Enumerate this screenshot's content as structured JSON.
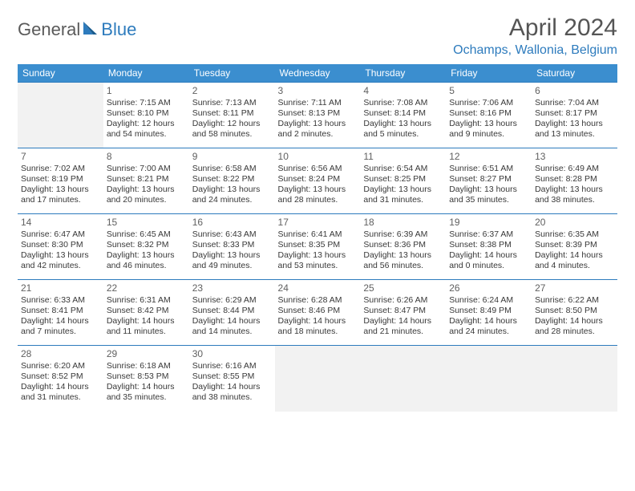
{
  "logo": {
    "text1": "General",
    "text2": "Blue"
  },
  "title": "April 2024",
  "location": "Ochamps, Wallonia, Belgium",
  "colors": {
    "header_bg": "#3b8ecf",
    "header_fg": "#ffffff",
    "accent": "#2d7bbd",
    "body_text": "#404040",
    "title_text": "#555555",
    "empty_bg": "#f2f2f2",
    "page_bg": "#ffffff"
  },
  "weekdays": [
    "Sunday",
    "Monday",
    "Tuesday",
    "Wednesday",
    "Thursday",
    "Friday",
    "Saturday"
  ],
  "layout": {
    "lead_empty": 1,
    "trail_empty": 4
  },
  "days": [
    {
      "n": "1",
      "sr": "Sunrise: 7:15 AM",
      "ss": "Sunset: 8:10 PM",
      "d1": "Daylight: 12 hours",
      "d2": "and 54 minutes."
    },
    {
      "n": "2",
      "sr": "Sunrise: 7:13 AM",
      "ss": "Sunset: 8:11 PM",
      "d1": "Daylight: 12 hours",
      "d2": "and 58 minutes."
    },
    {
      "n": "3",
      "sr": "Sunrise: 7:11 AM",
      "ss": "Sunset: 8:13 PM",
      "d1": "Daylight: 13 hours",
      "d2": "and 2 minutes."
    },
    {
      "n": "4",
      "sr": "Sunrise: 7:08 AM",
      "ss": "Sunset: 8:14 PM",
      "d1": "Daylight: 13 hours",
      "d2": "and 5 minutes."
    },
    {
      "n": "5",
      "sr": "Sunrise: 7:06 AM",
      "ss": "Sunset: 8:16 PM",
      "d1": "Daylight: 13 hours",
      "d2": "and 9 minutes."
    },
    {
      "n": "6",
      "sr": "Sunrise: 7:04 AM",
      "ss": "Sunset: 8:17 PM",
      "d1": "Daylight: 13 hours",
      "d2": "and 13 minutes."
    },
    {
      "n": "7",
      "sr": "Sunrise: 7:02 AM",
      "ss": "Sunset: 8:19 PM",
      "d1": "Daylight: 13 hours",
      "d2": "and 17 minutes."
    },
    {
      "n": "8",
      "sr": "Sunrise: 7:00 AM",
      "ss": "Sunset: 8:21 PM",
      "d1": "Daylight: 13 hours",
      "d2": "and 20 minutes."
    },
    {
      "n": "9",
      "sr": "Sunrise: 6:58 AM",
      "ss": "Sunset: 8:22 PM",
      "d1": "Daylight: 13 hours",
      "d2": "and 24 minutes."
    },
    {
      "n": "10",
      "sr": "Sunrise: 6:56 AM",
      "ss": "Sunset: 8:24 PM",
      "d1": "Daylight: 13 hours",
      "d2": "and 28 minutes."
    },
    {
      "n": "11",
      "sr": "Sunrise: 6:54 AM",
      "ss": "Sunset: 8:25 PM",
      "d1": "Daylight: 13 hours",
      "d2": "and 31 minutes."
    },
    {
      "n": "12",
      "sr": "Sunrise: 6:51 AM",
      "ss": "Sunset: 8:27 PM",
      "d1": "Daylight: 13 hours",
      "d2": "and 35 minutes."
    },
    {
      "n": "13",
      "sr": "Sunrise: 6:49 AM",
      "ss": "Sunset: 8:28 PM",
      "d1": "Daylight: 13 hours",
      "d2": "and 38 minutes."
    },
    {
      "n": "14",
      "sr": "Sunrise: 6:47 AM",
      "ss": "Sunset: 8:30 PM",
      "d1": "Daylight: 13 hours",
      "d2": "and 42 minutes."
    },
    {
      "n": "15",
      "sr": "Sunrise: 6:45 AM",
      "ss": "Sunset: 8:32 PM",
      "d1": "Daylight: 13 hours",
      "d2": "and 46 minutes."
    },
    {
      "n": "16",
      "sr": "Sunrise: 6:43 AM",
      "ss": "Sunset: 8:33 PM",
      "d1": "Daylight: 13 hours",
      "d2": "and 49 minutes."
    },
    {
      "n": "17",
      "sr": "Sunrise: 6:41 AM",
      "ss": "Sunset: 8:35 PM",
      "d1": "Daylight: 13 hours",
      "d2": "and 53 minutes."
    },
    {
      "n": "18",
      "sr": "Sunrise: 6:39 AM",
      "ss": "Sunset: 8:36 PM",
      "d1": "Daylight: 13 hours",
      "d2": "and 56 minutes."
    },
    {
      "n": "19",
      "sr": "Sunrise: 6:37 AM",
      "ss": "Sunset: 8:38 PM",
      "d1": "Daylight: 14 hours",
      "d2": "and 0 minutes."
    },
    {
      "n": "20",
      "sr": "Sunrise: 6:35 AM",
      "ss": "Sunset: 8:39 PM",
      "d1": "Daylight: 14 hours",
      "d2": "and 4 minutes."
    },
    {
      "n": "21",
      "sr": "Sunrise: 6:33 AM",
      "ss": "Sunset: 8:41 PM",
      "d1": "Daylight: 14 hours",
      "d2": "and 7 minutes."
    },
    {
      "n": "22",
      "sr": "Sunrise: 6:31 AM",
      "ss": "Sunset: 8:42 PM",
      "d1": "Daylight: 14 hours",
      "d2": "and 11 minutes."
    },
    {
      "n": "23",
      "sr": "Sunrise: 6:29 AM",
      "ss": "Sunset: 8:44 PM",
      "d1": "Daylight: 14 hours",
      "d2": "and 14 minutes."
    },
    {
      "n": "24",
      "sr": "Sunrise: 6:28 AM",
      "ss": "Sunset: 8:46 PM",
      "d1": "Daylight: 14 hours",
      "d2": "and 18 minutes."
    },
    {
      "n": "25",
      "sr": "Sunrise: 6:26 AM",
      "ss": "Sunset: 8:47 PM",
      "d1": "Daylight: 14 hours",
      "d2": "and 21 minutes."
    },
    {
      "n": "26",
      "sr": "Sunrise: 6:24 AM",
      "ss": "Sunset: 8:49 PM",
      "d1": "Daylight: 14 hours",
      "d2": "and 24 minutes."
    },
    {
      "n": "27",
      "sr": "Sunrise: 6:22 AM",
      "ss": "Sunset: 8:50 PM",
      "d1": "Daylight: 14 hours",
      "d2": "and 28 minutes."
    },
    {
      "n": "28",
      "sr": "Sunrise: 6:20 AM",
      "ss": "Sunset: 8:52 PM",
      "d1": "Daylight: 14 hours",
      "d2": "and 31 minutes."
    },
    {
      "n": "29",
      "sr": "Sunrise: 6:18 AM",
      "ss": "Sunset: 8:53 PM",
      "d1": "Daylight: 14 hours",
      "d2": "and 35 minutes."
    },
    {
      "n": "30",
      "sr": "Sunrise: 6:16 AM",
      "ss": "Sunset: 8:55 PM",
      "d1": "Daylight: 14 hours",
      "d2": "and 38 minutes."
    }
  ]
}
